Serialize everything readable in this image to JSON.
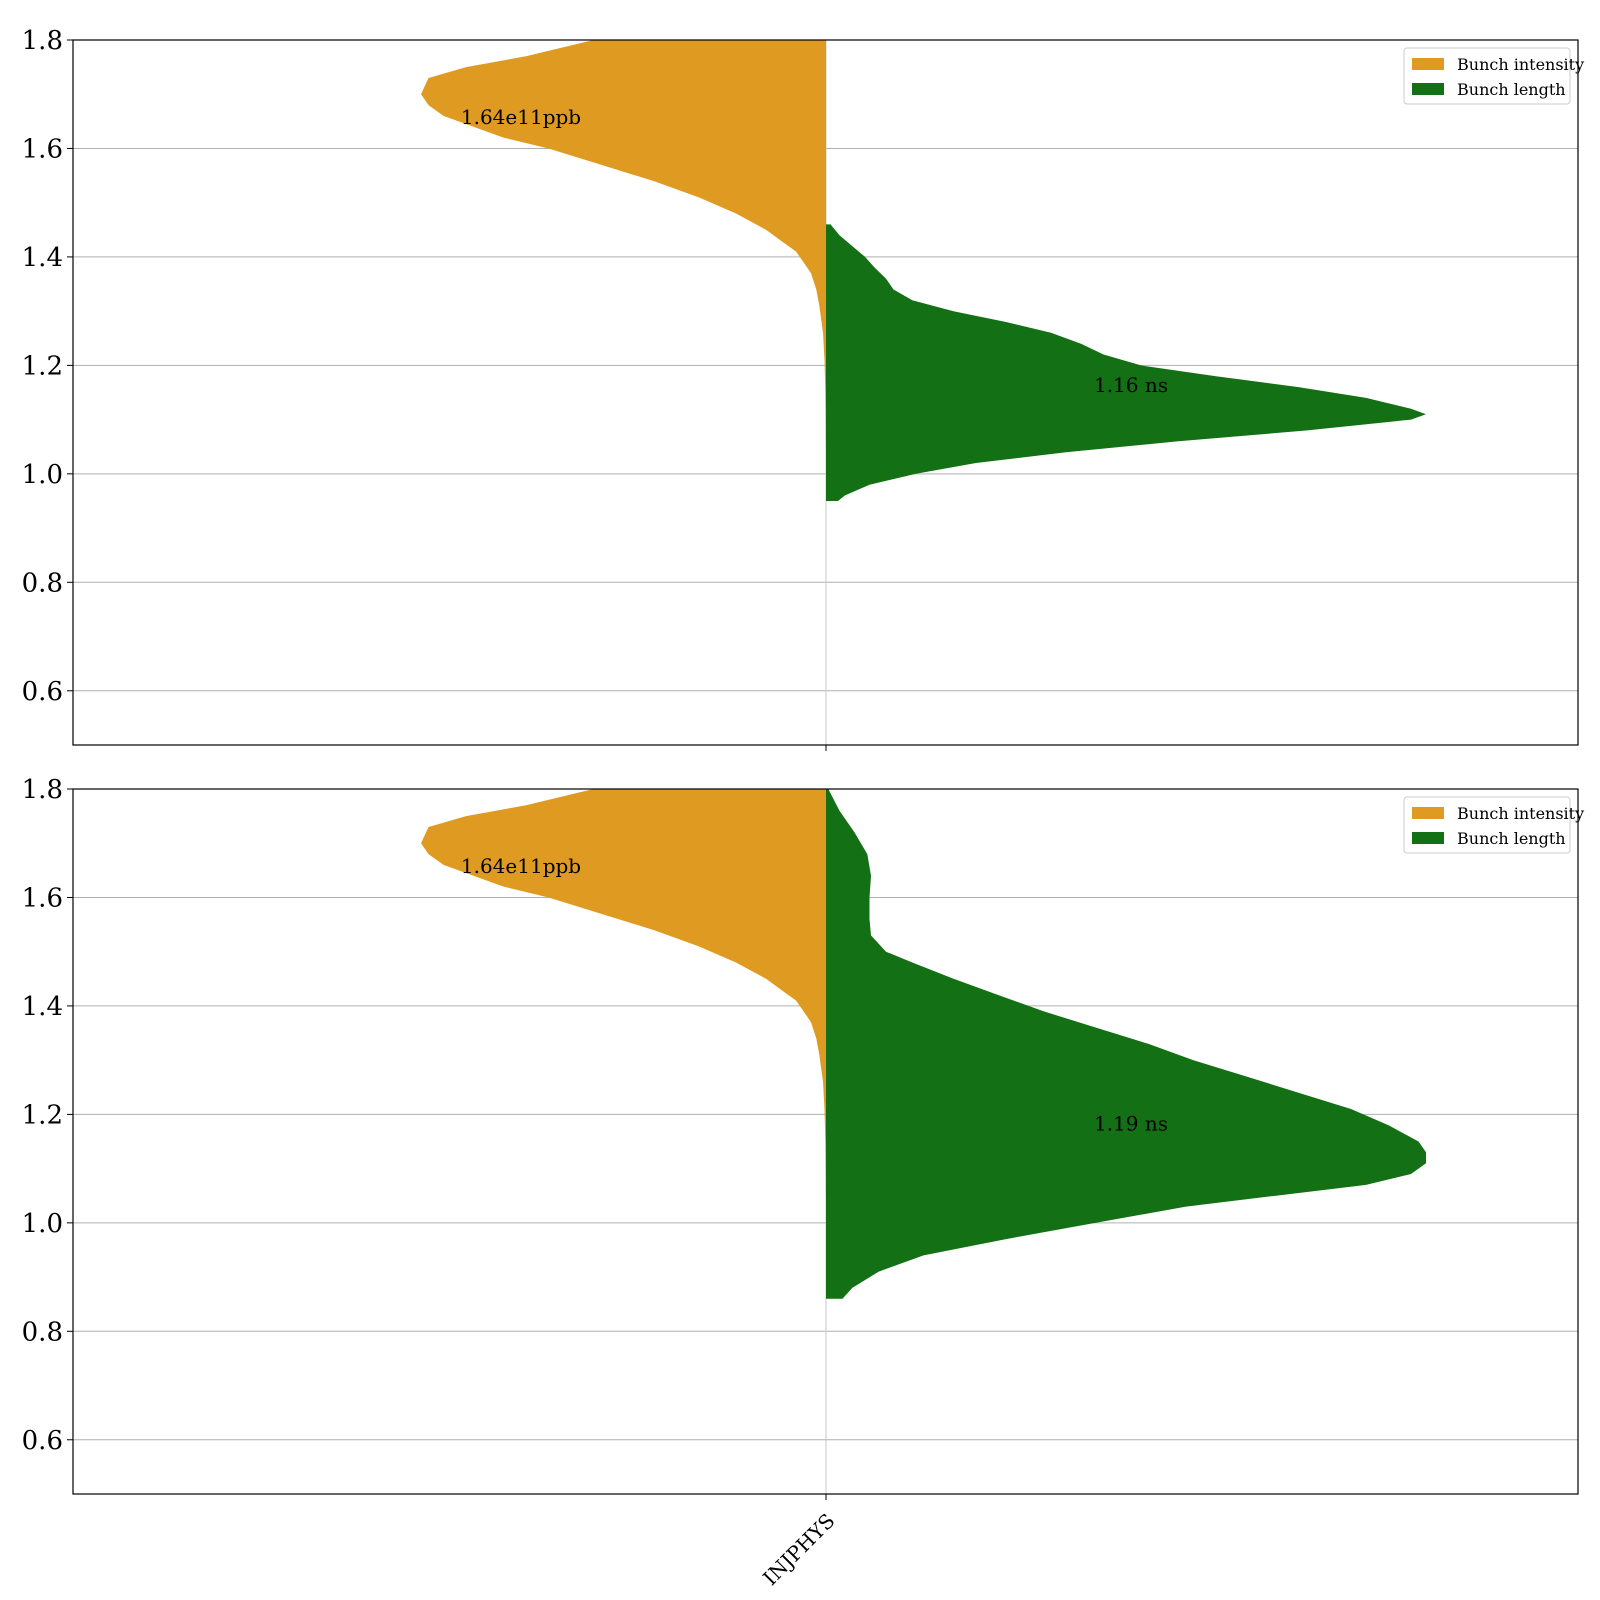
{
  "colors": {
    "intensity": "#df9b21",
    "length": "#137014",
    "grid": "#b0b0b0",
    "axis": "#000000"
  },
  "chart_data": [
    {
      "type": "violin",
      "split": true,
      "categories": [
        "INJPHYS"
      ],
      "ylim": [
        0.5,
        1.8
      ],
      "yticks": [
        "0.6",
        "0.8",
        "1.0",
        "1.2",
        "1.4",
        "1.6",
        "1.8"
      ],
      "grid": true,
      "legend_position": "upper right",
      "series": [
        {
          "name": "Bunch intensity",
          "side": "left",
          "color": "#df9b21",
          "annotation": "1.64e11ppb",
          "density": [
            [
              1.8,
              0.31
            ],
            [
              1.77,
              0.4
            ],
            [
              1.75,
              0.48
            ],
            [
              1.73,
              0.53
            ],
            [
              1.7,
              0.54
            ],
            [
              1.68,
              0.53
            ],
            [
              1.66,
              0.51
            ],
            [
              1.64,
              0.47
            ],
            [
              1.62,
              0.43
            ],
            [
              1.6,
              0.37
            ],
            [
              1.57,
              0.3
            ],
            [
              1.54,
              0.23
            ],
            [
              1.51,
              0.17
            ],
            [
              1.48,
              0.12
            ],
            [
              1.45,
              0.08
            ],
            [
              1.43,
              0.06
            ],
            [
              1.41,
              0.04
            ],
            [
              1.39,
              0.03
            ],
            [
              1.37,
              0.02
            ],
            [
              1.34,
              0.013
            ],
            [
              1.31,
              0.009
            ],
            [
              1.26,
              0.004
            ],
            [
              1.21,
              0.002
            ],
            [
              1.15,
              0.001
            ],
            [
              1.1,
              0.0005
            ],
            [
              1.05,
              0.0002
            ]
          ]
        },
        {
          "name": "Bunch length",
          "side": "right",
          "color": "#137014",
          "annotation": "1.16 ns",
          "density": [
            [
              1.46,
              0.006
            ],
            [
              1.44,
              0.018
            ],
            [
              1.42,
              0.035
            ],
            [
              1.4,
              0.052
            ],
            [
              1.38,
              0.065
            ],
            [
              1.36,
              0.08
            ],
            [
              1.34,
              0.09
            ],
            [
              1.32,
              0.115
            ],
            [
              1.3,
              0.17
            ],
            [
              1.28,
              0.24
            ],
            [
              1.26,
              0.3
            ],
            [
              1.24,
              0.34
            ],
            [
              1.22,
              0.37
            ],
            [
              1.2,
              0.42
            ],
            [
              1.18,
              0.52
            ],
            [
              1.16,
              0.63
            ],
            [
              1.14,
              0.72
            ],
            [
              1.12,
              0.78
            ],
            [
              1.11,
              0.8
            ],
            [
              1.1,
              0.78
            ],
            [
              1.08,
              0.64
            ],
            [
              1.06,
              0.47
            ],
            [
              1.04,
              0.32
            ],
            [
              1.02,
              0.2
            ],
            [
              1.0,
              0.12
            ],
            [
              0.98,
              0.058
            ],
            [
              0.96,
              0.025
            ],
            [
              0.95,
              0.016
            ]
          ]
        }
      ]
    },
    {
      "type": "violin",
      "split": true,
      "categories": [
        "INJPHYS"
      ],
      "ylim": [
        0.5,
        1.8
      ],
      "yticks": [
        "0.6",
        "0.8",
        "1.0",
        "1.2",
        "1.4",
        "1.6",
        "1.8"
      ],
      "grid": true,
      "legend_position": "upper right",
      "xtick_labels": [
        "INJPHYS"
      ],
      "series": [
        {
          "name": "Bunch intensity",
          "side": "left",
          "color": "#df9b21",
          "annotation": "1.64e11ppb",
          "density": [
            [
              1.8,
              0.31
            ],
            [
              1.77,
              0.4
            ],
            [
              1.75,
              0.48
            ],
            [
              1.73,
              0.53
            ],
            [
              1.7,
              0.54
            ],
            [
              1.68,
              0.53
            ],
            [
              1.66,
              0.51
            ],
            [
              1.64,
              0.47
            ],
            [
              1.62,
              0.43
            ],
            [
              1.6,
              0.37
            ],
            [
              1.57,
              0.3
            ],
            [
              1.54,
              0.23
            ],
            [
              1.51,
              0.17
            ],
            [
              1.48,
              0.12
            ],
            [
              1.45,
              0.08
            ],
            [
              1.43,
              0.06
            ],
            [
              1.41,
              0.04
            ],
            [
              1.39,
              0.03
            ],
            [
              1.37,
              0.02
            ],
            [
              1.34,
              0.013
            ],
            [
              1.31,
              0.009
            ],
            [
              1.26,
              0.004
            ],
            [
              1.21,
              0.002
            ],
            [
              1.15,
              0.001
            ],
            [
              1.1,
              0.0005
            ],
            [
              1.05,
              0.0002
            ]
          ]
        },
        {
          "name": "Bunch length",
          "side": "right",
          "color": "#137014",
          "annotation": "1.19 ns",
          "density": [
            [
              1.8,
              0.003
            ],
            [
              1.76,
              0.018
            ],
            [
              1.72,
              0.038
            ],
            [
              1.68,
              0.055
            ],
            [
              1.64,
              0.06
            ],
            [
              1.6,
              0.058
            ],
            [
              1.56,
              0.058
            ],
            [
              1.53,
              0.06
            ],
            [
              1.5,
              0.08
            ],
            [
              1.48,
              0.115
            ],
            [
              1.45,
              0.17
            ],
            [
              1.42,
              0.23
            ],
            [
              1.39,
              0.29
            ],
            [
              1.36,
              0.36
            ],
            [
              1.33,
              0.43
            ],
            [
              1.3,
              0.49
            ],
            [
              1.27,
              0.56
            ],
            [
              1.24,
              0.63
            ],
            [
              1.21,
              0.7
            ],
            [
              1.18,
              0.75
            ],
            [
              1.15,
              0.79
            ],
            [
              1.13,
              0.8
            ],
            [
              1.11,
              0.8
            ],
            [
              1.09,
              0.78
            ],
            [
              1.07,
              0.72
            ],
            [
              1.05,
              0.6
            ],
            [
              1.03,
              0.48
            ],
            [
              1.0,
              0.36
            ],
            [
              0.97,
              0.24
            ],
            [
              0.94,
              0.13
            ],
            [
              0.91,
              0.07
            ],
            [
              0.88,
              0.035
            ],
            [
              0.86,
              0.022
            ]
          ]
        }
      ]
    }
  ]
}
